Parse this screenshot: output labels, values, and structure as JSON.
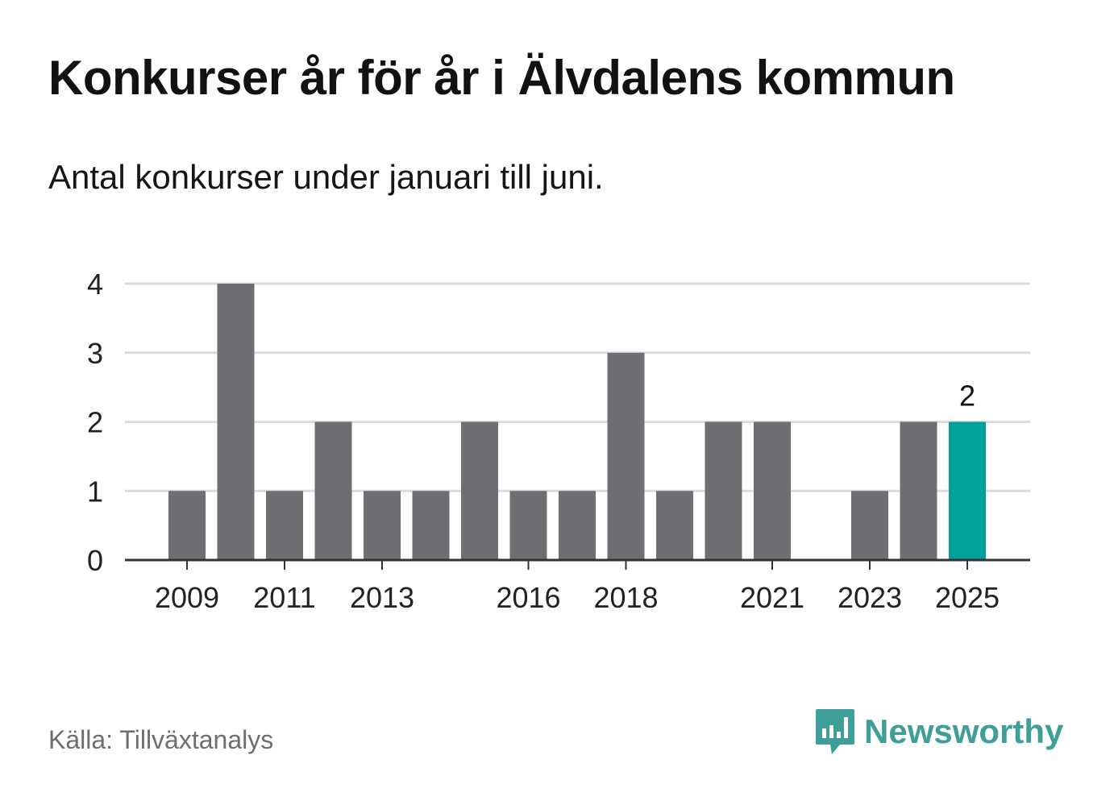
{
  "title": "Konkurser år för år i Älvdalens kommun",
  "subtitle": "Antal konkurser under januari till juni.",
  "source": "Källa: Tillväxtanalys",
  "brand": {
    "name": "Newsworthy",
    "icon": "newsworthy-logo-icon",
    "color": "#3f9e97"
  },
  "chart_data": {
    "type": "bar",
    "categories": [
      "2009",
      "2010",
      "2011",
      "2012",
      "2013",
      "2014",
      "2015",
      "2016",
      "2017",
      "2018",
      "2019",
      "2020",
      "2021",
      "2022",
      "2023",
      "2024",
      "2025"
    ],
    "values": [
      1,
      4,
      1,
      2,
      1,
      1,
      2,
      1,
      1,
      3,
      1,
      2,
      2,
      0,
      1,
      2,
      2
    ],
    "x_tick_labels": [
      "2009",
      "2011",
      "2013",
      "2016",
      "2018",
      "2021",
      "2023",
      "2025"
    ],
    "y_ticks": [
      0,
      1,
      2,
      3,
      4
    ],
    "ylim": [
      0,
      4
    ],
    "grid": true,
    "highlight": {
      "category": "2025",
      "label": "2",
      "color": "#00a19a"
    },
    "bar_color": "#6f6e73"
  }
}
